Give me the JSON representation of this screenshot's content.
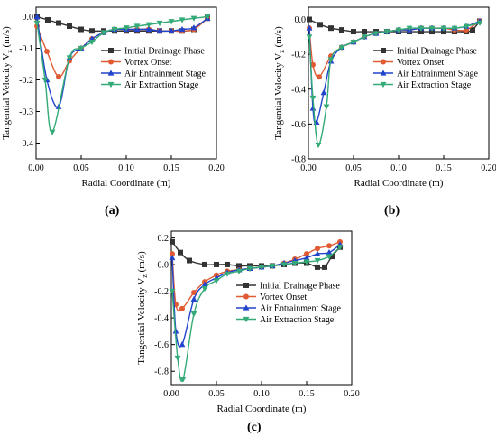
{
  "chart_data": [
    {
      "type": "line",
      "panel_label": "(a)",
      "xlabel": "Radial Coordinate (m)",
      "ylabel": "Tangential Velocity V",
      "ylabel_sub": "z",
      "ylabel_unit": " (m/s)",
      "xlim": [
        0,
        0.2
      ],
      "ylim": [
        -0.45,
        0.03
      ],
      "xticks": [
        0.0,
        0.05,
        0.1,
        0.15,
        0.2
      ],
      "xtick_labels": [
        "0.00",
        "0.05",
        "0.10",
        "0.15",
        "0.20"
      ],
      "yticks": [
        0.0,
        -0.1,
        -0.2,
        -0.3,
        -0.4
      ],
      "ytick_labels": [
        "0.0",
        "-0.1",
        "-0.2",
        "-0.3",
        "-0.4"
      ],
      "legend_position": "top-right",
      "series": [
        {
          "name": "Initial Drainage Phase",
          "color": "#333333",
          "marker": "square",
          "points": [
            [
              0.001,
              0.0
            ],
            [
              0.013,
              -0.01
            ],
            [
              0.025,
              -0.02
            ],
            [
              0.037,
              -0.03
            ],
            [
              0.05,
              -0.04
            ],
            [
              0.062,
              -0.045
            ],
            [
              0.075,
              -0.045
            ],
            [
              0.087,
              -0.045
            ],
            [
              0.1,
              -0.045
            ],
            [
              0.112,
              -0.045
            ],
            [
              0.125,
              -0.045
            ],
            [
              0.137,
              -0.045
            ],
            [
              0.15,
              -0.045
            ],
            [
              0.162,
              -0.045
            ],
            [
              0.175,
              -0.04
            ],
            [
              0.19,
              -0.005
            ]
          ]
        },
        {
          "name": "Vortex Onset",
          "color": "#e05b33",
          "marker": "circle",
          "points": [
            [
              0.001,
              -0.03
            ],
            [
              0.012,
              -0.11
            ],
            [
              0.025,
              -0.19
            ],
            [
              0.037,
              -0.14
            ],
            [
              0.05,
              -0.1
            ],
            [
              0.062,
              -0.07
            ],
            [
              0.075,
              -0.05
            ],
            [
              0.087,
              -0.04
            ],
            [
              0.1,
              -0.04
            ],
            [
              0.112,
              -0.04
            ],
            [
              0.125,
              -0.04
            ],
            [
              0.137,
              -0.045
            ],
            [
              0.15,
              -0.045
            ],
            [
              0.162,
              -0.045
            ],
            [
              0.175,
              -0.04
            ],
            [
              0.19,
              -0.005
            ]
          ]
        },
        {
          "name": "Air Entrainment Stage",
          "color": "#2244cc",
          "marker": "triangle-up",
          "points": [
            [
              0.001,
              0.0
            ],
            [
              0.012,
              -0.2
            ],
            [
              0.025,
              -0.285
            ],
            [
              0.037,
              -0.13
            ],
            [
              0.05,
              -0.1
            ],
            [
              0.062,
              -0.07
            ],
            [
              0.075,
              -0.05
            ],
            [
              0.087,
              -0.04
            ],
            [
              0.1,
              -0.04
            ],
            [
              0.112,
              -0.04
            ],
            [
              0.125,
              -0.04
            ],
            [
              0.137,
              -0.045
            ],
            [
              0.15,
              -0.045
            ],
            [
              0.162,
              -0.04
            ],
            [
              0.175,
              -0.035
            ],
            [
              0.19,
              -0.005
            ]
          ]
        },
        {
          "name": "Air Extraction Stage",
          "color": "#33aa77",
          "marker": "triangle-down",
          "points": [
            [
              0.001,
              -0.02
            ],
            [
              0.01,
              -0.2
            ],
            [
              0.018,
              -0.365
            ],
            [
              0.037,
              -0.13
            ],
            [
              0.05,
              -0.1
            ],
            [
              0.062,
              -0.08
            ],
            [
              0.075,
              -0.05
            ],
            [
              0.087,
              -0.04
            ],
            [
              0.1,
              -0.035
            ],
            [
              0.112,
              -0.03
            ],
            [
              0.125,
              -0.025
            ],
            [
              0.137,
              -0.02
            ],
            [
              0.15,
              -0.015
            ],
            [
              0.162,
              -0.01
            ],
            [
              0.175,
              -0.005
            ],
            [
              0.19,
              0.0
            ]
          ]
        }
      ]
    },
    {
      "type": "line",
      "panel_label": "(b)",
      "xlabel": "Radial Coordinate (m)",
      "ylabel": "Tangential Velocity V",
      "ylabel_sub": "z",
      "ylabel_unit": " (m/s)",
      "xlim": [
        0,
        0.2
      ],
      "ylim": [
        -0.8,
        0.07
      ],
      "xticks": [
        0.0,
        0.05,
        0.1,
        0.15,
        0.2
      ],
      "xtick_labels": [
        "0.00",
        "0.05",
        "0.10",
        "0.15",
        "0.20"
      ],
      "yticks": [
        0.0,
        -0.2,
        -0.4,
        -0.6,
        -0.8
      ],
      "ytick_labels": [
        "0.0",
        "-0.2",
        "-0.4",
        "-0.6",
        "-0.8"
      ],
      "legend_position": "top-right",
      "series": [
        {
          "name": "Initial Drainage Phase",
          "color": "#333333",
          "marker": "square",
          "points": [
            [
              0.001,
              0.0
            ],
            [
              0.013,
              -0.03
            ],
            [
              0.025,
              -0.05
            ],
            [
              0.037,
              -0.06
            ],
            [
              0.05,
              -0.07
            ],
            [
              0.062,
              -0.07
            ],
            [
              0.075,
              -0.07
            ],
            [
              0.087,
              -0.07
            ],
            [
              0.1,
              -0.07
            ],
            [
              0.112,
              -0.07
            ],
            [
              0.125,
              -0.07
            ],
            [
              0.137,
              -0.07
            ],
            [
              0.15,
              -0.07
            ],
            [
              0.162,
              -0.07
            ],
            [
              0.175,
              -0.07
            ],
            [
              0.182,
              -0.06
            ],
            [
              0.19,
              -0.01
            ]
          ]
        },
        {
          "name": "Vortex Onset",
          "color": "#e05b33",
          "marker": "circle",
          "points": [
            [
              0.001,
              -0.05
            ],
            [
              0.005,
              -0.26
            ],
            [
              0.012,
              -0.33
            ],
            [
              0.025,
              -0.21
            ],
            [
              0.037,
              -0.16
            ],
            [
              0.05,
              -0.13
            ],
            [
              0.062,
              -0.1
            ],
            [
              0.075,
              -0.08
            ],
            [
              0.087,
              -0.07
            ],
            [
              0.1,
              -0.06
            ],
            [
              0.112,
              -0.06
            ],
            [
              0.125,
              -0.05
            ],
            [
              0.137,
              -0.05
            ],
            [
              0.15,
              -0.05
            ],
            [
              0.162,
              -0.06
            ],
            [
              0.175,
              -0.06
            ],
            [
              0.19,
              -0.01
            ]
          ]
        },
        {
          "name": "Air Entrainment Stage",
          "color": "#2244cc",
          "marker": "triangle-up",
          "points": [
            [
              0.001,
              -0.05
            ],
            [
              0.005,
              -0.51
            ],
            [
              0.009,
              -0.59
            ],
            [
              0.017,
              -0.42
            ],
            [
              0.025,
              -0.24
            ],
            [
              0.037,
              -0.16
            ],
            [
              0.05,
              -0.13
            ],
            [
              0.062,
              -0.1
            ],
            [
              0.075,
              -0.08
            ],
            [
              0.087,
              -0.07
            ],
            [
              0.1,
              -0.06
            ],
            [
              0.112,
              -0.06
            ],
            [
              0.125,
              -0.05
            ],
            [
              0.137,
              -0.05
            ],
            [
              0.15,
              -0.05
            ],
            [
              0.162,
              -0.05
            ],
            [
              0.175,
              -0.04
            ],
            [
              0.19,
              -0.01
            ]
          ]
        },
        {
          "name": "Air Extraction Stage",
          "color": "#33aa77",
          "marker": "triangle-down",
          "points": [
            [
              0.001,
              -0.1
            ],
            [
              0.005,
              -0.45
            ],
            [
              0.011,
              -0.72
            ],
            [
              0.02,
              -0.5
            ],
            [
              0.025,
              -0.23
            ],
            [
              0.037,
              -0.16
            ],
            [
              0.05,
              -0.13
            ],
            [
              0.062,
              -0.1
            ],
            [
              0.075,
              -0.08
            ],
            [
              0.087,
              -0.07
            ],
            [
              0.1,
              -0.06
            ],
            [
              0.112,
              -0.05
            ],
            [
              0.125,
              -0.05
            ],
            [
              0.137,
              -0.05
            ],
            [
              0.15,
              -0.05
            ],
            [
              0.162,
              -0.05
            ],
            [
              0.175,
              -0.04
            ],
            [
              0.19,
              -0.02
            ]
          ]
        }
      ]
    },
    {
      "type": "line",
      "panel_label": "(c)",
      "xlabel": "Radial Coordinate (m)",
      "ylabel": "Tangential Velocity V",
      "ylabel_sub": "z",
      "ylabel_unit": " (m/s)",
      "xlim": [
        0,
        0.2
      ],
      "ylim": [
        -0.9,
        0.25
      ],
      "xticks": [
        0.0,
        0.05,
        0.1,
        0.15,
        0.2
      ],
      "xtick_labels": [
        "0.00",
        "0.05",
        "0.10",
        "0.15",
        "0.20"
      ],
      "yticks": [
        0.2,
        0.0,
        -0.2,
        -0.4,
        -0.6,
        -0.8
      ],
      "ytick_labels": [
        "0.2",
        "0.0",
        "-0.2",
        "-0.4",
        "-0.6",
        "-0.8"
      ],
      "legend_position": "center-right",
      "series": [
        {
          "name": "Initial Drainage Phase",
          "color": "#333333",
          "marker": "square",
          "points": [
            [
              0.001,
              0.17
            ],
            [
              0.01,
              0.09
            ],
            [
              0.02,
              0.03
            ],
            [
              0.037,
              0.0
            ],
            [
              0.05,
              0.0
            ],
            [
              0.062,
              0.0
            ],
            [
              0.075,
              -0.01
            ],
            [
              0.087,
              -0.01
            ],
            [
              0.1,
              -0.01
            ],
            [
              0.112,
              -0.01
            ],
            [
              0.125,
              0.0
            ],
            [
              0.137,
              0.01
            ],
            [
              0.15,
              0.01
            ],
            [
              0.162,
              -0.02
            ],
            [
              0.17,
              -0.02
            ],
            [
              0.178,
              0.06
            ],
            [
              0.187,
              0.13
            ]
          ]
        },
        {
          "name": "Vortex Onset",
          "color": "#e05b33",
          "marker": "circle",
          "points": [
            [
              0.001,
              0.08
            ],
            [
              0.005,
              -0.3
            ],
            [
              0.012,
              -0.33
            ],
            [
              0.025,
              -0.21
            ],
            [
              0.037,
              -0.13
            ],
            [
              0.05,
              -0.08
            ],
            [
              0.062,
              -0.05
            ],
            [
              0.075,
              -0.04
            ],
            [
              0.087,
              -0.03
            ],
            [
              0.1,
              -0.02
            ],
            [
              0.112,
              -0.01
            ],
            [
              0.125,
              0.01
            ],
            [
              0.137,
              0.04
            ],
            [
              0.15,
              0.08
            ],
            [
              0.162,
              0.12
            ],
            [
              0.175,
              0.14
            ],
            [
              0.187,
              0.17
            ]
          ]
        },
        {
          "name": "Air Entrainment Stage",
          "color": "#2244cc",
          "marker": "triangle-up",
          "points": [
            [
              0.001,
              0.05
            ],
            [
              0.005,
              -0.5
            ],
            [
              0.012,
              -0.6
            ],
            [
              0.025,
              -0.26
            ],
            [
              0.037,
              -0.15
            ],
            [
              0.05,
              -0.1
            ],
            [
              0.062,
              -0.06
            ],
            [
              0.075,
              -0.04
            ],
            [
              0.087,
              -0.03
            ],
            [
              0.1,
              -0.02
            ],
            [
              0.112,
              -0.01
            ],
            [
              0.125,
              0.01
            ],
            [
              0.137,
              0.03
            ],
            [
              0.15,
              0.05
            ],
            [
              0.162,
              0.08
            ],
            [
              0.175,
              0.09
            ],
            [
              0.187,
              0.15
            ]
          ]
        },
        {
          "name": "Air Extraction Stage",
          "color": "#33aa77",
          "marker": "triangle-down",
          "points": [
            [
              0.001,
              -0.2
            ],
            [
              0.007,
              -0.7
            ],
            [
              0.013,
              -0.86
            ],
            [
              0.025,
              -0.37
            ],
            [
              0.037,
              -0.18
            ],
            [
              0.05,
              -0.12
            ],
            [
              0.062,
              -0.07
            ],
            [
              0.075,
              -0.05
            ],
            [
              0.087,
              -0.03
            ],
            [
              0.1,
              -0.02
            ],
            [
              0.112,
              -0.01
            ],
            [
              0.125,
              0.0
            ],
            [
              0.137,
              0.01
            ],
            [
              0.15,
              0.02
            ],
            [
              0.162,
              0.03
            ],
            [
              0.175,
              0.06
            ],
            [
              0.187,
              0.13
            ]
          ]
        }
      ]
    }
  ]
}
